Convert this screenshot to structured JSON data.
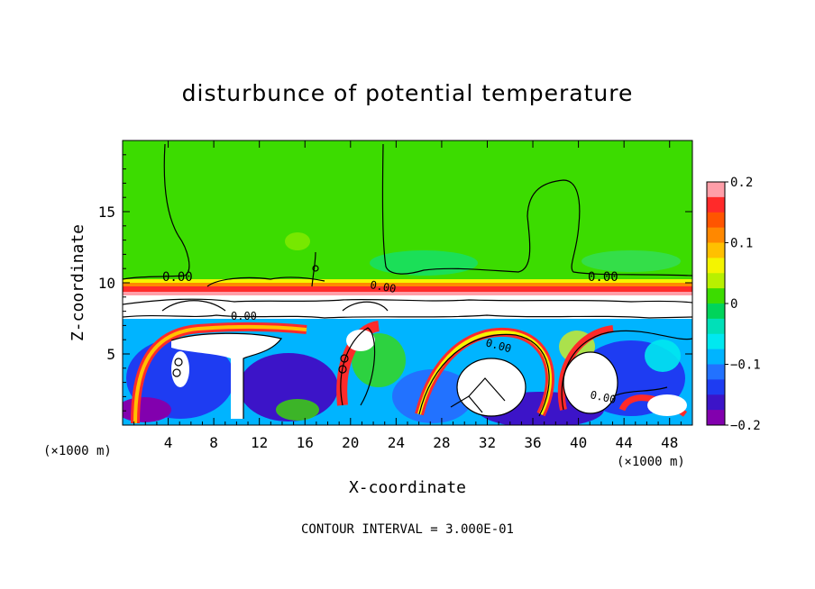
{
  "chart_data": {
    "type": "heatmap",
    "title": "disturbunce of potential temperature",
    "xlabel": "X-coordinate",
    "ylabel": "Z-coordinate",
    "x_unit": "(×1000 m)",
    "y_unit": "(×1000 m)",
    "x_ticks": [
      4,
      8,
      12,
      16,
      20,
      24,
      28,
      32,
      36,
      40,
      44,
      48
    ],
    "y_ticks": [
      5,
      10,
      15
    ],
    "xlim": [
      0,
      50
    ],
    "ylim": [
      0,
      20
    ],
    "colorbar": {
      "ticks": [
        "0.2",
        "0.1",
        "0",
        "−0.1",
        "−0.2"
      ],
      "tick_values": [
        0.2,
        0.1,
        0,
        -0.1,
        -0.2
      ],
      "range": [
        -0.2,
        0.2
      ],
      "colors": [
        "#ff9ea8",
        "#ff2a2a",
        "#ff5500",
        "#ff8800",
        "#ffc000",
        "#f4f400",
        "#b8f000",
        "#3cdc00",
        "#00d45a",
        "#00e0b8",
        "#00e8f0",
        "#00b4ff",
        "#2272ff",
        "#1e3cf2",
        "#3c14c8",
        "#8200ae"
      ]
    },
    "contour_labels": [
      "0.00",
      "0.00",
      "0.00",
      "0.00",
      "0.00",
      "0.00"
    ],
    "footer": "CONTOUR INTERVAL = 3.000E-01"
  }
}
